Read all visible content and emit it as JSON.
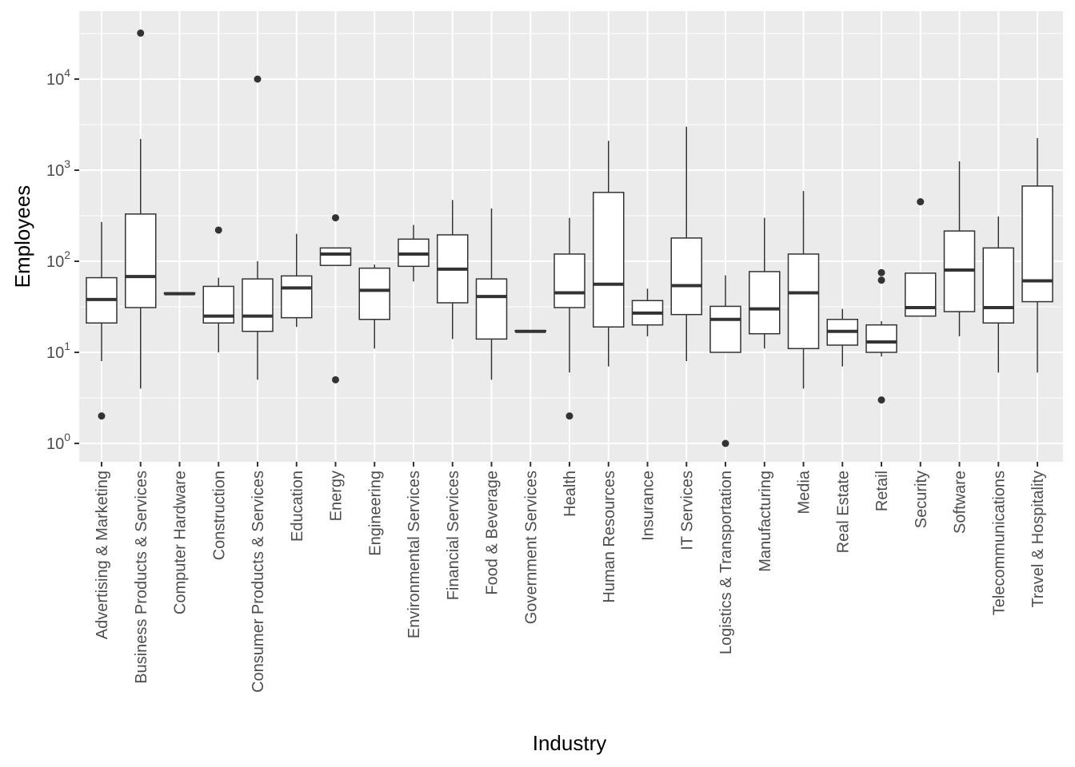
{
  "chart_data": {
    "type": "boxplot",
    "xlabel": "Industry",
    "ylabel": "Employees",
    "yscale": "log10",
    "ylim": [
      0.55,
      45000
    ],
    "yticks": [
      {
        "value": 1,
        "base": "10",
        "exp": "0"
      },
      {
        "value": 10,
        "base": "10",
        "exp": "1"
      },
      {
        "value": 100,
        "base": "10",
        "exp": "2"
      },
      {
        "value": 1000,
        "base": "10",
        "exp": "3"
      },
      {
        "value": 10000,
        "base": "10",
        "exp": "4"
      }
    ],
    "categories": [
      "Advertising & Marketing",
      "Business Products & Services",
      "Computer Hardware",
      "Construction",
      "Consumer Products & Services",
      "Education",
      "Energy",
      "Engineering",
      "Environmental Services",
      "Financial Services",
      "Food & Beverage",
      "Government Services",
      "Health",
      "Human Resources",
      "Insurance",
      "IT Services",
      "Logistics & Transportation",
      "Manufacturing",
      "Media",
      "Real Estate",
      "Retail",
      "Security",
      "Software",
      "Telecommunications",
      "Travel & Hospitality"
    ],
    "boxes": [
      {
        "category": "Advertising & Marketing",
        "whisker_low": 8,
        "q1": 21,
        "median": 38,
        "q3": 66,
        "whisker_high": 270,
        "outliers": [
          2
        ]
      },
      {
        "category": "Business Products & Services",
        "whisker_low": 4,
        "q1": 31,
        "median": 68,
        "q3": 330,
        "whisker_high": 2200,
        "outliers": [
          32000
        ]
      },
      {
        "category": "Computer Hardware",
        "whisker_low": 44,
        "q1": 44,
        "median": 44,
        "q3": 45,
        "whisker_high": 45,
        "outliers": []
      },
      {
        "category": "Construction",
        "whisker_low": 10,
        "q1": 21,
        "median": 25,
        "q3": 53,
        "whisker_high": 66,
        "outliers": [
          220
        ]
      },
      {
        "category": "Consumer Products & Services",
        "whisker_low": 5,
        "q1": 17,
        "median": 25,
        "q3": 64,
        "whisker_high": 100,
        "outliers": [
          10000
        ]
      },
      {
        "category": "Education",
        "whisker_low": 19,
        "q1": 24,
        "median": 51,
        "q3": 69,
        "whisker_high": 200,
        "outliers": []
      },
      {
        "category": "Energy",
        "whisker_low": 90,
        "q1": 90,
        "median": 120,
        "q3": 140,
        "whisker_high": 140,
        "outliers": [
          300,
          5
        ]
      },
      {
        "category": "Engineering",
        "whisker_low": 11,
        "q1": 23,
        "median": 48,
        "q3": 84,
        "whisker_high": 92,
        "outliers": []
      },
      {
        "category": "Environmental Services",
        "whisker_low": 60,
        "q1": 88,
        "median": 120,
        "q3": 175,
        "whisker_high": 250,
        "outliers": []
      },
      {
        "category": "Financial Services",
        "whisker_low": 14,
        "q1": 35,
        "median": 82,
        "q3": 195,
        "whisker_high": 470,
        "outliers": []
      },
      {
        "category": "Food & Beverage",
        "whisker_low": 5,
        "q1": 14,
        "median": 41,
        "q3": 64,
        "whisker_high": 380,
        "outliers": []
      },
      {
        "category": "Government Services",
        "whisker_low": 17,
        "q1": 17,
        "median": 17,
        "q3": 17.3,
        "whisker_high": 17.3,
        "outliers": []
      },
      {
        "category": "Health",
        "whisker_low": 6,
        "q1": 31,
        "median": 45,
        "q3": 120,
        "whisker_high": 300,
        "outliers": [
          2
        ]
      },
      {
        "category": "Human Resources",
        "whisker_low": 7,
        "q1": 19,
        "median": 56,
        "q3": 570,
        "whisker_high": 2100,
        "outliers": []
      },
      {
        "category": "Insurance",
        "whisker_low": 15,
        "q1": 20,
        "median": 27,
        "q3": 37,
        "whisker_high": 50,
        "outliers": []
      },
      {
        "category": "IT Services",
        "whisker_low": 8,
        "q1": 26,
        "median": 54,
        "q3": 180,
        "whisker_high": 3000,
        "outliers": []
      },
      {
        "category": "Logistics & Transportation",
        "whisker_low": 10,
        "q1": 10,
        "median": 23,
        "q3": 32,
        "whisker_high": 70,
        "outliers": [
          1
        ]
      },
      {
        "category": "Manufacturing",
        "whisker_low": 11,
        "q1": 16,
        "median": 30,
        "q3": 77,
        "whisker_high": 300,
        "outliers": []
      },
      {
        "category": "Media",
        "whisker_low": 4,
        "q1": 11,
        "median": 45,
        "q3": 120,
        "whisker_high": 590,
        "outliers": []
      },
      {
        "category": "Real Estate",
        "whisker_low": 7,
        "q1": 12,
        "median": 17,
        "q3": 23,
        "whisker_high": 30,
        "outliers": []
      },
      {
        "category": "Retail",
        "whisker_low": 9,
        "q1": 10,
        "median": 13,
        "q3": 20,
        "whisker_high": 22,
        "outliers": [
          75,
          62,
          3
        ]
      },
      {
        "category": "Security",
        "whisker_low": 25,
        "q1": 25,
        "median": 31,
        "q3": 74,
        "whisker_high": 74,
        "outliers": [
          450
        ]
      },
      {
        "category": "Software",
        "whisker_low": 15,
        "q1": 28,
        "median": 80,
        "q3": 215,
        "whisker_high": 1250,
        "outliers": []
      },
      {
        "category": "Telecommunications",
        "whisker_low": 6,
        "q1": 21,
        "median": 31,
        "q3": 140,
        "whisker_high": 310,
        "outliers": []
      },
      {
        "category": "Travel & Hospitality",
        "whisker_low": 6,
        "q1": 36,
        "median": 61,
        "q3": 670,
        "whisker_high": 2250,
        "outliers": []
      }
    ]
  }
}
